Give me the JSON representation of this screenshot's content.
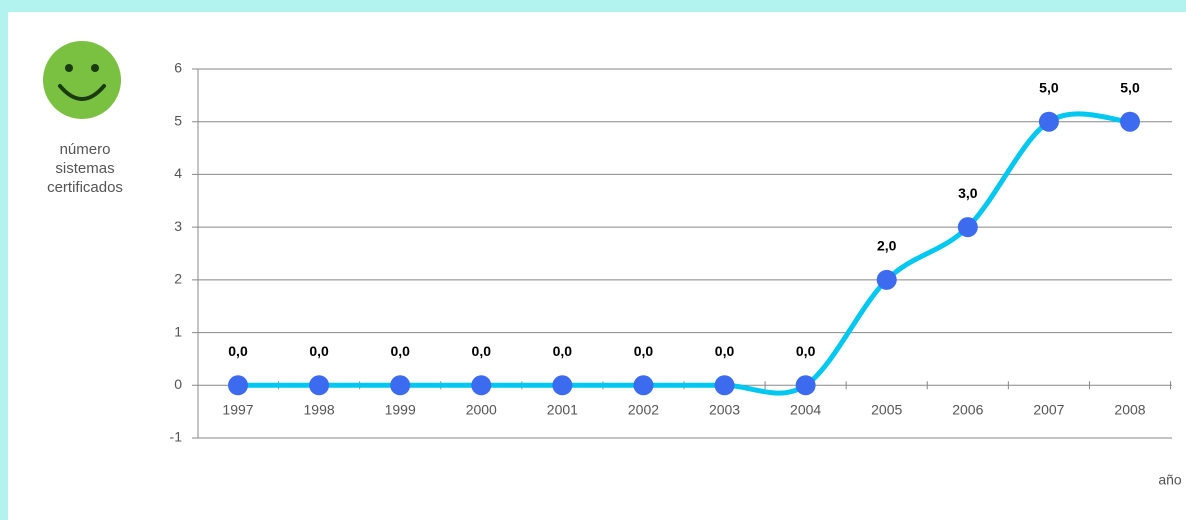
{
  "chart_data": {
    "type": "line",
    "y_label": "número sistemas certificados",
    "x_label": "año",
    "categories": [
      "1997",
      "1998",
      "1999",
      "2000",
      "2001",
      "2002",
      "2003",
      "2004",
      "2005",
      "2006",
      "2007",
      "2008"
    ],
    "series": [
      {
        "name": "número sistemas certificados",
        "color": "#00c8f0",
        "marker_color": "#3d6bef",
        "values": [
          0,
          0,
          0,
          0,
          0,
          0,
          0,
          0,
          2,
          3,
          5,
          5
        ],
        "value_labels": [
          "0,0",
          "0,0",
          "0,0",
          "0,0",
          "0,0",
          "0,0",
          "0,0",
          "0,0",
          "2,0",
          "3,0",
          "5,0",
          "5,0"
        ]
      }
    ],
    "ylim": [
      -1,
      6
    ],
    "yticks": [
      -1,
      0,
      1,
      2,
      3,
      4,
      5,
      6
    ],
    "grid": true
  }
}
